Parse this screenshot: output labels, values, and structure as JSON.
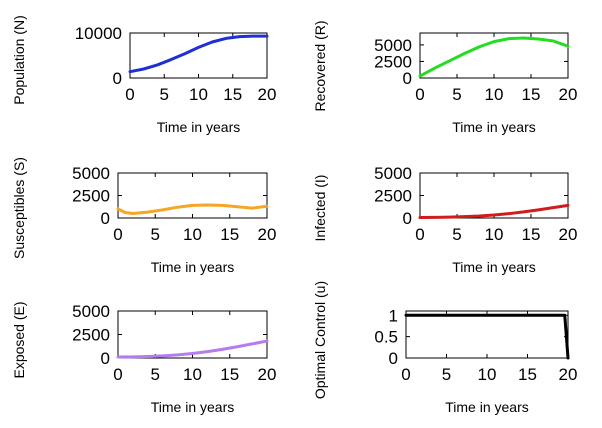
{
  "chart_data": [
    {
      "id": "population",
      "type": "line",
      "title": "",
      "xlabel": "Time in years",
      "ylabel": "Population (N)",
      "xlim": [
        0,
        20
      ],
      "ylim": [
        0,
        10000
      ],
      "xticks": [
        0,
        5,
        10,
        15,
        20
      ],
      "yticks": [
        0,
        10000
      ],
      "grid": false,
      "series": [
        {
          "name": "N",
          "color": "#1f2fd6",
          "x": [
            0,
            2,
            4,
            6,
            8,
            10,
            12,
            14,
            16,
            18,
            20
          ],
          "values": [
            1400,
            2000,
            2900,
            4100,
            5400,
            6800,
            8000,
            8800,
            9200,
            9300,
            9300
          ]
        }
      ]
    },
    {
      "id": "recovered",
      "type": "line",
      "title": "",
      "xlabel": "Time in years",
      "ylabel": "Recovered (R)",
      "xlim": [
        0,
        20
      ],
      "ylim": [
        0,
        6800
      ],
      "xticks": [
        0,
        5,
        10,
        15,
        20
      ],
      "yticks": [
        0,
        2500,
        5000
      ],
      "grid": false,
      "series": [
        {
          "name": "R",
          "color": "#22dd22",
          "x": [
            0,
            2,
            4,
            6,
            8,
            10,
            12,
            14,
            16,
            18,
            20
          ],
          "values": [
            300,
            1500,
            2600,
            3700,
            4700,
            5500,
            5950,
            6050,
            5900,
            5600,
            4800
          ]
        }
      ]
    },
    {
      "id": "susceptibles",
      "type": "line",
      "title": "",
      "xlabel": "Time in years",
      "ylabel": "Susceptibles (S)",
      "xlim": [
        0,
        20
      ],
      "ylim": [
        0,
        5000
      ],
      "xticks": [
        0,
        5,
        10,
        15,
        20
      ],
      "yticks": [
        0,
        2500,
        5000
      ],
      "grid": false,
      "series": [
        {
          "name": "S",
          "color": "#f5a623",
          "x": [
            0,
            1,
            2,
            4,
            6,
            8,
            10,
            12,
            14,
            16,
            18,
            20
          ],
          "values": [
            1000,
            600,
            500,
            650,
            900,
            1200,
            1400,
            1450,
            1400,
            1250,
            1100,
            1300
          ]
        }
      ]
    },
    {
      "id": "infected",
      "type": "line",
      "title": "",
      "xlabel": "Time in years",
      "ylabel": "Infected (I)",
      "xlim": [
        0,
        20
      ],
      "ylim": [
        0,
        5000
      ],
      "xticks": [
        0,
        5,
        10,
        15,
        20
      ],
      "yticks": [
        0,
        2500,
        5000
      ],
      "grid": false,
      "series": [
        {
          "name": "I",
          "color": "#d01c1c",
          "x": [
            0,
            2,
            4,
            6,
            8,
            10,
            12,
            14,
            16,
            18,
            20
          ],
          "values": [
            50,
            70,
            100,
            150,
            220,
            330,
            480,
            680,
            900,
            1150,
            1400
          ]
        }
      ]
    },
    {
      "id": "exposed",
      "type": "line",
      "title": "",
      "xlabel": "Time in years",
      "ylabel": "Exposed (E)",
      "xlim": [
        0,
        20
      ],
      "ylim": [
        0,
        5000
      ],
      "xticks": [
        0,
        5,
        10,
        15,
        20
      ],
      "yticks": [
        0,
        2500,
        5000
      ],
      "grid": false,
      "series": [
        {
          "name": "E",
          "color": "#b57cf0",
          "x": [
            0,
            2,
            4,
            6,
            8,
            10,
            12,
            14,
            16,
            18,
            20
          ],
          "values": [
            100,
            120,
            160,
            230,
            330,
            480,
            680,
            920,
            1200,
            1500,
            1800
          ]
        }
      ]
    },
    {
      "id": "control",
      "type": "line",
      "title": "",
      "xlabel": "Time in years",
      "ylabel": "Optimal Control (u)",
      "xlim": [
        0,
        20
      ],
      "ylim": [
        0,
        1.1
      ],
      "xticks": [
        0,
        5,
        10,
        15,
        20
      ],
      "yticks": [
        0,
        0.5,
        1
      ],
      "grid": false,
      "series": [
        {
          "name": "u",
          "color": "#000000",
          "x": [
            0,
            19.2,
            19.6,
            20
          ],
          "values": [
            1,
            1,
            1,
            0
          ]
        }
      ]
    }
  ]
}
